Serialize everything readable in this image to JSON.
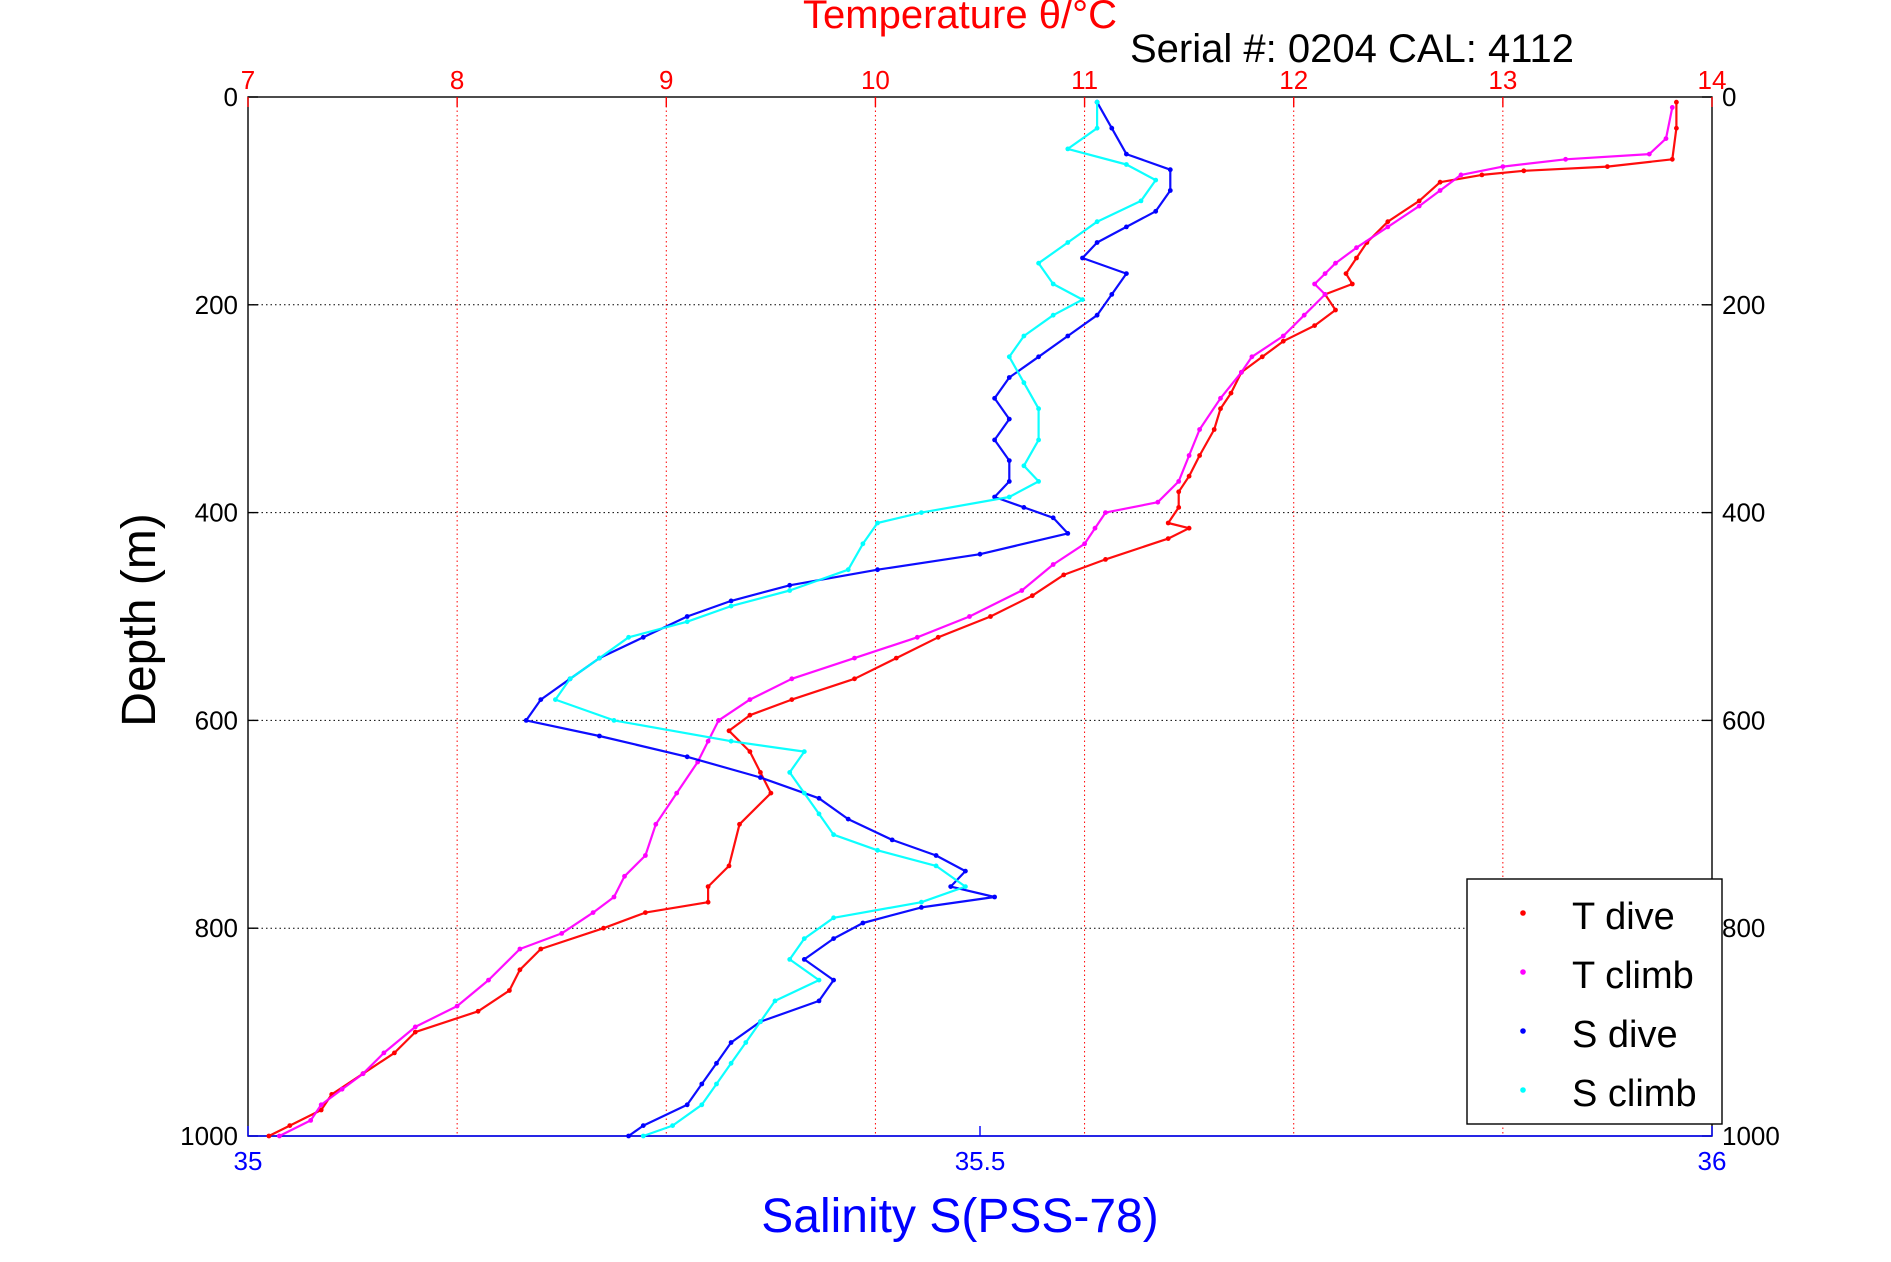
{
  "chart_data": {
    "type": "scatter",
    "title": "Temperature θ/°C",
    "subtitle": "Serial #: 0204  CAL: 4112",
    "ylabel": "Depth (m)",
    "xlabel_bottom": "Salinity S(PSS-78)",
    "xlabel_top": "Temperature θ/°C",
    "y_range": [
      0,
      1000
    ],
    "y_reversed": true,
    "y_ticks": [
      0,
      200,
      400,
      600,
      800,
      1000
    ],
    "x_top_range": [
      7,
      14
    ],
    "x_top_ticks": [
      7,
      8,
      9,
      10,
      11,
      12,
      13,
      14
    ],
    "x_bottom_range": [
      35,
      36
    ],
    "x_bottom_ticks": [
      35,
      35.5,
      36
    ],
    "grid": true,
    "legend": "bottom-right",
    "colors": {
      "t_dive": "#ff0000",
      "t_climb": "#ff00ff",
      "s_dive": "#0000ff",
      "s_climb": "#00ffff",
      "top_axis": "#ff0000",
      "bottom_axis": "#0000ff",
      "grid": "#000000"
    },
    "series": [
      {
        "name": "T dive",
        "axis": "temperature",
        "points": [
          [
            13.83,
            5
          ],
          [
            13.83,
            30
          ],
          [
            13.81,
            60
          ],
          [
            13.5,
            67
          ],
          [
            13.1,
            71
          ],
          [
            12.9,
            75
          ],
          [
            12.7,
            82
          ],
          [
            12.6,
            100
          ],
          [
            12.45,
            120
          ],
          [
            12.35,
            140
          ],
          [
            12.3,
            155
          ],
          [
            12.25,
            170
          ],
          [
            12.28,
            180
          ],
          [
            12.15,
            190
          ],
          [
            12.2,
            205
          ],
          [
            12.1,
            220
          ],
          [
            11.95,
            235
          ],
          [
            11.85,
            250
          ],
          [
            11.75,
            265
          ],
          [
            11.7,
            285
          ],
          [
            11.65,
            300
          ],
          [
            11.62,
            320
          ],
          [
            11.55,
            345
          ],
          [
            11.5,
            365
          ],
          [
            11.45,
            380
          ],
          [
            11.45,
            395
          ],
          [
            11.4,
            410
          ],
          [
            11.5,
            415
          ],
          [
            11.4,
            425
          ],
          [
            11.1,
            445
          ],
          [
            10.9,
            460
          ],
          [
            10.75,
            480
          ],
          [
            10.55,
            500
          ],
          [
            10.3,
            520
          ],
          [
            10.1,
            540
          ],
          [
            9.9,
            560
          ],
          [
            9.6,
            580
          ],
          [
            9.4,
            595
          ],
          [
            9.3,
            610
          ],
          [
            9.4,
            630
          ],
          [
            9.45,
            650
          ],
          [
            9.5,
            670
          ],
          [
            9.35,
            700
          ],
          [
            9.3,
            740
          ],
          [
            9.2,
            760
          ],
          [
            9.2,
            775
          ],
          [
            8.9,
            785
          ],
          [
            8.7,
            800
          ],
          [
            8.4,
            820
          ],
          [
            8.3,
            840
          ],
          [
            8.25,
            860
          ],
          [
            8.1,
            880
          ],
          [
            7.8,
            900
          ],
          [
            7.7,
            920
          ],
          [
            7.55,
            940
          ],
          [
            7.4,
            960
          ],
          [
            7.35,
            975
          ],
          [
            7.2,
            990
          ],
          [
            7.1,
            1000
          ]
        ]
      },
      {
        "name": "T climb",
        "axis": "temperature",
        "points": [
          [
            13.81,
            10
          ],
          [
            13.78,
            40
          ],
          [
            13.7,
            55
          ],
          [
            13.3,
            60
          ],
          [
            13.0,
            67
          ],
          [
            12.8,
            75
          ],
          [
            12.7,
            90
          ],
          [
            12.6,
            105
          ],
          [
            12.45,
            125
          ],
          [
            12.3,
            145
          ],
          [
            12.2,
            160
          ],
          [
            12.15,
            170
          ],
          [
            12.1,
            180
          ],
          [
            12.15,
            190
          ],
          [
            12.05,
            210
          ],
          [
            11.95,
            230
          ],
          [
            11.8,
            250
          ],
          [
            11.75,
            265
          ],
          [
            11.65,
            290
          ],
          [
            11.55,
            320
          ],
          [
            11.5,
            345
          ],
          [
            11.45,
            370
          ],
          [
            11.35,
            390
          ],
          [
            11.1,
            400
          ],
          [
            11.05,
            415
          ],
          [
            11.0,
            430
          ],
          [
            10.85,
            450
          ],
          [
            10.7,
            475
          ],
          [
            10.45,
            500
          ],
          [
            10.2,
            520
          ],
          [
            9.9,
            540
          ],
          [
            9.6,
            560
          ],
          [
            9.4,
            580
          ],
          [
            9.25,
            600
          ],
          [
            9.2,
            620
          ],
          [
            9.15,
            640
          ],
          [
            9.05,
            670
          ],
          [
            8.95,
            700
          ],
          [
            8.9,
            730
          ],
          [
            8.8,
            750
          ],
          [
            8.75,
            770
          ],
          [
            8.65,
            785
          ],
          [
            8.5,
            805
          ],
          [
            8.3,
            820
          ],
          [
            8.15,
            850
          ],
          [
            8.0,
            875
          ],
          [
            7.8,
            895
          ],
          [
            7.65,
            920
          ],
          [
            7.55,
            940
          ],
          [
            7.45,
            955
          ],
          [
            7.35,
            970
          ],
          [
            7.3,
            985
          ],
          [
            7.15,
            1000
          ]
        ]
      },
      {
        "name": "S dive",
        "axis": "salinity",
        "points": [
          [
            35.58,
            5
          ],
          [
            35.59,
            30
          ],
          [
            35.6,
            55
          ],
          [
            35.63,
            70
          ],
          [
            35.63,
            90
          ],
          [
            35.62,
            110
          ],
          [
            35.6,
            125
          ],
          [
            35.58,
            140
          ],
          [
            35.57,
            155
          ],
          [
            35.6,
            170
          ],
          [
            35.59,
            190
          ],
          [
            35.58,
            210
          ],
          [
            35.56,
            230
          ],
          [
            35.54,
            250
          ],
          [
            35.52,
            270
          ],
          [
            35.51,
            290
          ],
          [
            35.52,
            310
          ],
          [
            35.51,
            330
          ],
          [
            35.52,
            350
          ],
          [
            35.52,
            370
          ],
          [
            35.51,
            385
          ],
          [
            35.53,
            395
          ],
          [
            35.55,
            405
          ],
          [
            35.56,
            420
          ],
          [
            35.5,
            440
          ],
          [
            35.43,
            455
          ],
          [
            35.37,
            470
          ],
          [
            35.33,
            485
          ],
          [
            35.3,
            500
          ],
          [
            35.27,
            520
          ],
          [
            35.24,
            540
          ],
          [
            35.22,
            560
          ],
          [
            35.2,
            580
          ],
          [
            35.19,
            600
          ],
          [
            35.24,
            615
          ],
          [
            35.3,
            635
          ],
          [
            35.35,
            655
          ],
          [
            35.39,
            675
          ],
          [
            35.41,
            695
          ],
          [
            35.44,
            715
          ],
          [
            35.47,
            730
          ],
          [
            35.49,
            745
          ],
          [
            35.48,
            760
          ],
          [
            35.51,
            770
          ],
          [
            35.46,
            780
          ],
          [
            35.42,
            795
          ],
          [
            35.4,
            810
          ],
          [
            35.38,
            830
          ],
          [
            35.4,
            850
          ],
          [
            35.39,
            870
          ],
          [
            35.35,
            890
          ],
          [
            35.33,
            910
          ],
          [
            35.32,
            930
          ],
          [
            35.31,
            950
          ],
          [
            35.3,
            970
          ],
          [
            35.27,
            990
          ],
          [
            35.26,
            1000
          ]
        ]
      },
      {
        "name": "S climb",
        "axis": "salinity",
        "points": [
          [
            35.58,
            5
          ],
          [
            35.58,
            30
          ],
          [
            35.56,
            50
          ],
          [
            35.6,
            65
          ],
          [
            35.62,
            80
          ],
          [
            35.61,
            100
          ],
          [
            35.58,
            120
          ],
          [
            35.56,
            140
          ],
          [
            35.54,
            160
          ],
          [
            35.55,
            180
          ],
          [
            35.57,
            195
          ],
          [
            35.55,
            210
          ],
          [
            35.53,
            230
          ],
          [
            35.52,
            250
          ],
          [
            35.53,
            275
          ],
          [
            35.54,
            300
          ],
          [
            35.54,
            330
          ],
          [
            35.53,
            355
          ],
          [
            35.54,
            370
          ],
          [
            35.52,
            385
          ],
          [
            35.46,
            400
          ],
          [
            35.43,
            410
          ],
          [
            35.42,
            430
          ],
          [
            35.41,
            455
          ],
          [
            35.37,
            475
          ],
          [
            35.33,
            490
          ],
          [
            35.3,
            505
          ],
          [
            35.26,
            520
          ],
          [
            35.24,
            540
          ],
          [
            35.22,
            560
          ],
          [
            35.21,
            580
          ],
          [
            35.25,
            600
          ],
          [
            35.33,
            620
          ],
          [
            35.38,
            630
          ],
          [
            35.37,
            650
          ],
          [
            35.38,
            670
          ],
          [
            35.39,
            690
          ],
          [
            35.4,
            710
          ],
          [
            35.43,
            725
          ],
          [
            35.47,
            740
          ],
          [
            35.49,
            760
          ],
          [
            35.46,
            775
          ],
          [
            35.4,
            790
          ],
          [
            35.38,
            810
          ],
          [
            35.37,
            830
          ],
          [
            35.39,
            850
          ],
          [
            35.36,
            870
          ],
          [
            35.35,
            890
          ],
          [
            35.34,
            910
          ],
          [
            35.33,
            930
          ],
          [
            35.32,
            950
          ],
          [
            35.31,
            970
          ],
          [
            35.29,
            990
          ],
          [
            35.27,
            1000
          ]
        ]
      }
    ]
  }
}
